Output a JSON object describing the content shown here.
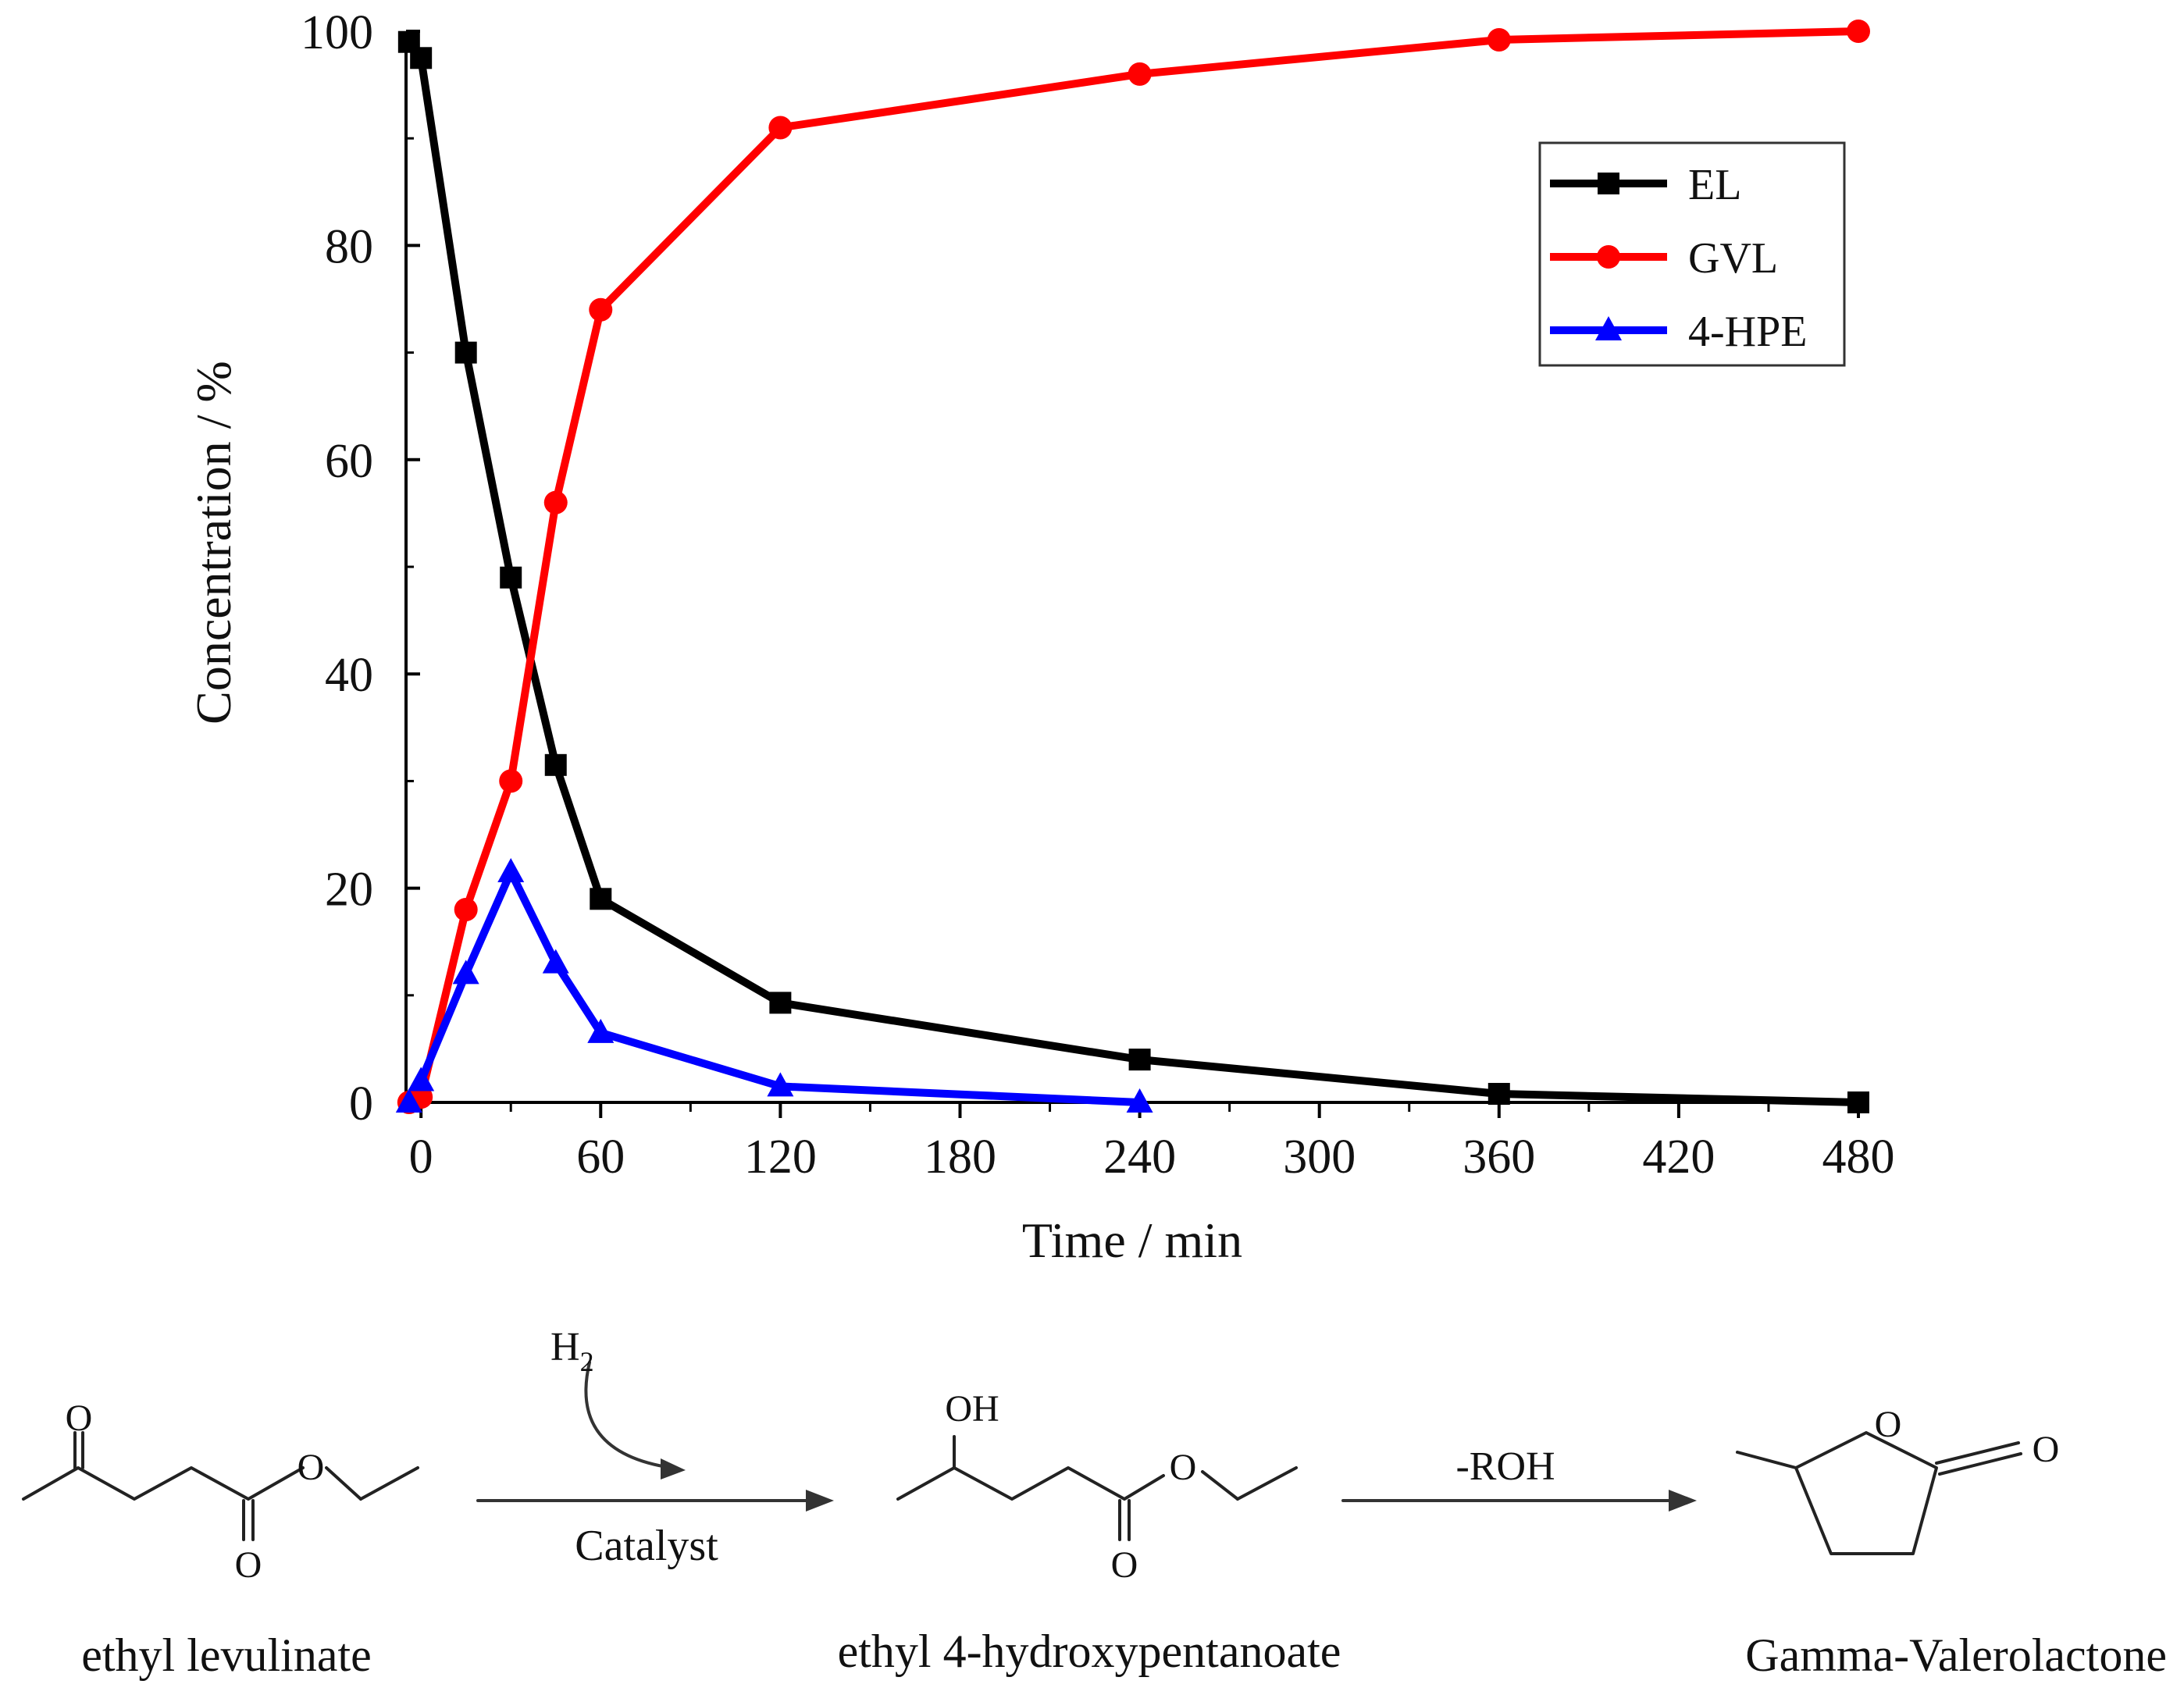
{
  "chart_data": {
    "type": "line",
    "title": "",
    "xlabel": "Time / min",
    "ylabel": "Concentration / %",
    "xlim": [
      -5,
      480
    ],
    "ylim": [
      0,
      100
    ],
    "xticks": [
      0,
      60,
      120,
      180,
      240,
      300,
      360,
      420,
      480
    ],
    "yticks": [
      0,
      20,
      40,
      60,
      80,
      100
    ],
    "grid": false,
    "legend_position": "top-right",
    "series": [
      {
        "name": "EL",
        "color": "#000000",
        "marker": "square",
        "x": [
          -4,
          0,
          15,
          30,
          45,
          60,
          120,
          240,
          360,
          480
        ],
        "y": [
          99,
          97.5,
          70,
          49,
          31.5,
          19,
          9.3,
          4,
          0.8,
          0
        ]
      },
      {
        "name": "GVL",
        "color": "#ff0000",
        "marker": "circle",
        "x": [
          -4,
          0,
          15,
          30,
          45,
          60,
          120,
          240,
          360,
          480
        ],
        "y": [
          0,
          0.5,
          18,
          30,
          56,
          74,
          91,
          96,
          99.2,
          100
        ]
      },
      {
        "name": "4-HPE",
        "color": "#0000ff",
        "marker": "triangle",
        "x": [
          -4,
          0,
          15,
          30,
          45,
          60,
          120,
          240
        ],
        "y": [
          0,
          2,
          12,
          21.5,
          13,
          6.5,
          1.5,
          0
        ]
      }
    ]
  },
  "scheme": {
    "reactant_label": "ethyl levulinate",
    "intermediate_label": "ethyl 4-hydroxypentanoate",
    "product_label": "Gamma-Valerolactone",
    "step1_reagent": "H",
    "step1_reagent_subscript": "2",
    "step1_catalyst": "Catalyst",
    "step2_reagent": "-ROH",
    "atoms": {
      "oxygen": "O",
      "hydroxyl": "OH"
    }
  }
}
